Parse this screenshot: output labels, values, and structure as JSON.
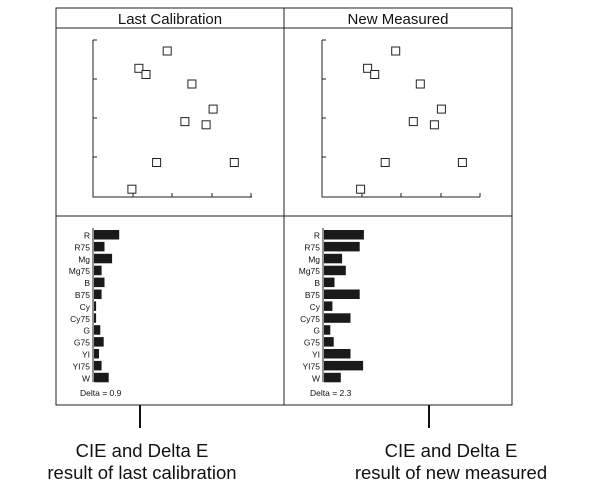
{
  "panels": [
    {
      "title": "Last Calibration",
      "cie_points": [
        [
          0.18,
          0.22
        ],
        [
          0.26,
          0.48
        ],
        [
          0.32,
          0.46
        ],
        [
          0.4,
          0.22
        ],
        [
          0.13,
          0.82
        ],
        [
          0.28,
          0.72
        ],
        [
          0.21,
          0.93
        ],
        [
          0.34,
          0.56
        ],
        [
          0.15,
          0.78
        ],
        [
          0.11,
          0.05
        ]
      ],
      "bars": [
        {
          "label": "R",
          "value": 0.6
        },
        {
          "label": "R75",
          "value": 0.25
        },
        {
          "label": "Mg",
          "value": 0.43
        },
        {
          "label": "Mg75",
          "value": 0.18
        },
        {
          "label": "B",
          "value": 0.25
        },
        {
          "label": "B75",
          "value": 0.18
        },
        {
          "label": "Cy",
          "value": 0.05
        },
        {
          "label": "Cy75",
          "value": 0.05
        },
        {
          "label": "G",
          "value": 0.15
        },
        {
          "label": "G75",
          "value": 0.23
        },
        {
          "label": "YI",
          "value": 0.12
        },
        {
          "label": "YI75",
          "value": 0.18
        },
        {
          "label": "W",
          "value": 0.35
        }
      ],
      "delta_label": "Delta = 0.9",
      "caption": [
        "CIE and Delta E",
        "result of last calibration"
      ]
    },
    {
      "title": "New Measured",
      "cie_points": [
        [
          0.18,
          0.22
        ],
        [
          0.26,
          0.48
        ],
        [
          0.32,
          0.46
        ],
        [
          0.4,
          0.22
        ],
        [
          0.13,
          0.82
        ],
        [
          0.28,
          0.72
        ],
        [
          0.21,
          0.93
        ],
        [
          0.34,
          0.56
        ],
        [
          0.15,
          0.78
        ],
        [
          0.11,
          0.05
        ]
      ],
      "bars": [
        {
          "label": "R",
          "value": 0.95
        },
        {
          "label": "R75",
          "value": 0.85
        },
        {
          "label": "Mg",
          "value": 0.43
        },
        {
          "label": "Mg75",
          "value": 0.52
        },
        {
          "label": "B",
          "value": 0.25
        },
        {
          "label": "B75",
          "value": 0.85
        },
        {
          "label": "Cy",
          "value": 0.2
        },
        {
          "label": "Cy75",
          "value": 0.63
        },
        {
          "label": "G",
          "value": 0.15
        },
        {
          "label": "G75",
          "value": 0.23
        },
        {
          "label": "YI",
          "value": 0.63
        },
        {
          "label": "YI75",
          "value": 0.93
        },
        {
          "label": "W",
          "value": 0.4
        }
      ],
      "delta_label": "Delta = 2.3",
      "caption": [
        "CIE and Delta E",
        "result of new measured"
      ]
    }
  ]
}
